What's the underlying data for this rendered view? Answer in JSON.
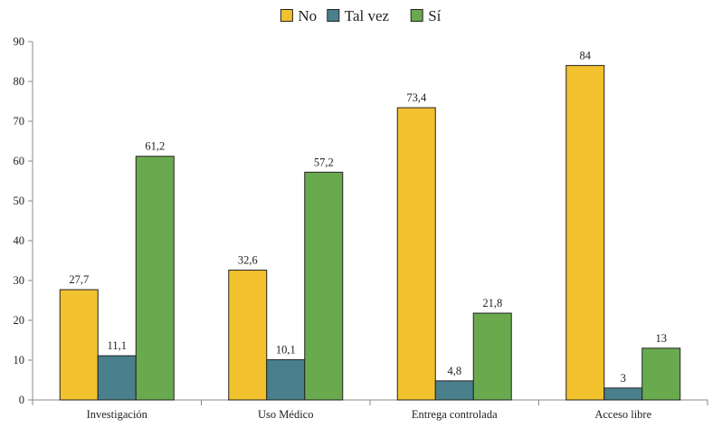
{
  "chart_data": {
    "type": "bar",
    "title": "",
    "xlabel": "",
    "ylabel": "",
    "categories": [
      "Investigación",
      "Uso Médico",
      "Entrega controlada",
      "Acceso libre"
    ],
    "series": [
      {
        "name": "No",
        "color": "#F2C12E",
        "values": [
          27.7,
          32.6,
          73.4,
          84
        ],
        "labels": [
          "27,7",
          "32,6",
          "73,4",
          "84"
        ]
      },
      {
        "name": "Tal vez",
        "color": "#4A7F8C",
        "values": [
          11.1,
          10.1,
          4.8,
          3
        ],
        "labels": [
          "11,1",
          "10,1",
          "4,8",
          "3"
        ]
      },
      {
        "name": "Sí",
        "color": "#6AAA4F",
        "values": [
          61.2,
          57.2,
          21.8,
          13
        ],
        "labels": [
          "61,2",
          "57,2",
          "21,8",
          "13"
        ]
      }
    ],
    "ylim": [
      0,
      90
    ],
    "yticks": [
      0,
      10,
      20,
      30,
      40,
      50,
      60,
      70,
      80,
      90
    ],
    "grid": false,
    "legend_position": "top-center"
  }
}
